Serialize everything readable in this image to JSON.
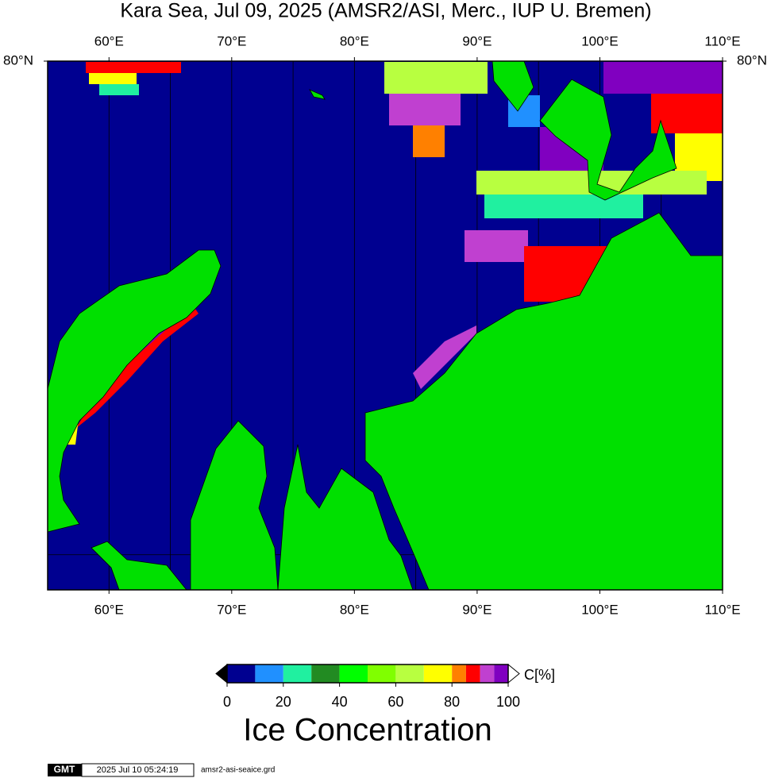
{
  "chart_data": {
    "type": "map",
    "projection": "mercator",
    "title": "Kara Sea, Jul 09, 2025 (AMSR2/ASI, Merc., IUP U. Bremen)",
    "xlim": [
      55,
      110
    ],
    "ylim": [
      69,
      80
    ],
    "xticks": [
      {
        "value": 60,
        "label": "60°E"
      },
      {
        "value": 70,
        "label": "70°E"
      },
      {
        "value": 80,
        "label": "80°E"
      },
      {
        "value": 90,
        "label": "90°E"
      },
      {
        "value": 100,
        "label": "100°E"
      },
      {
        "value": 110,
        "label": "110°E"
      }
    ],
    "yticks": [
      {
        "value": 80,
        "label": "80°N"
      }
    ],
    "xgrid": [
      60,
      65,
      70,
      75,
      80,
      85,
      90,
      95,
      100,
      105
    ],
    "ygrid": [
      70
    ],
    "sea_color": "#000090",
    "land_color": "#00e000",
    "colorbar": {
      "label": "C[%]",
      "title": "Ice Concentration",
      "bounds": [
        0,
        10,
        20,
        30,
        40,
        50,
        60,
        70,
        80,
        85,
        90,
        95,
        100
      ],
      "colors": [
        "#000090",
        "#2090ff",
        "#20f0a0",
        "#228b22",
        "#00ff00",
        "#80ff00",
        "#b8ff40",
        "#ffff00",
        "#ff8000",
        "#ff0000",
        "#c040d0",
        "#8000c0"
      ],
      "under_color": "#000000",
      "over_color": "#ffffff",
      "ticks": [
        0,
        20,
        40,
        60,
        80,
        100
      ]
    }
  },
  "footer": {
    "logo": "GMT",
    "timestamp": "2025 Jul 10 05:24:19",
    "file": "amsr2-asi-seaice.grd"
  }
}
